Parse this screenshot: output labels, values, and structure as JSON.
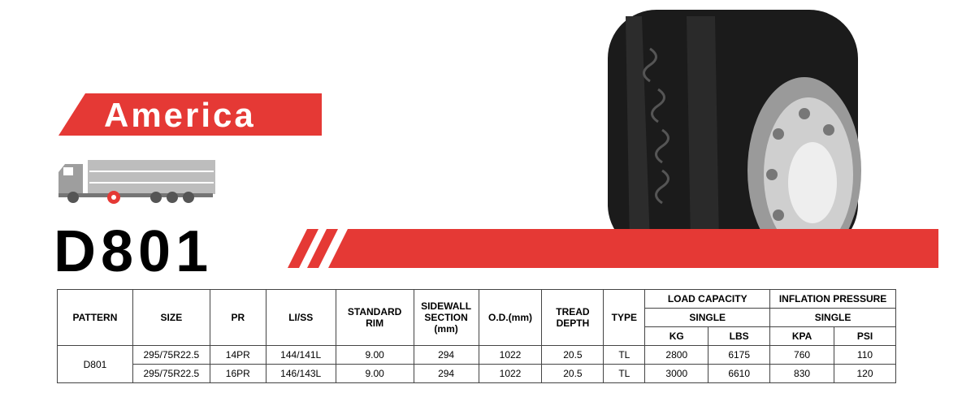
{
  "banner": {
    "region": "America",
    "model": "D801"
  },
  "table": {
    "columns": [
      "PATTERN",
      "SIZE",
      "PR",
      "LI/SS",
      "STANDARD RIM",
      "SIDEWALL SECTION (mm)",
      "O.D.(mm)",
      "TREAD DEPTH",
      "TYPE"
    ],
    "groups": [
      {
        "title": "LOAD CAPACITY",
        "sub": "SINGLE",
        "units": [
          "KG",
          "LBS"
        ]
      },
      {
        "title": "INFLATION PRESSURE",
        "sub": "SINGLE",
        "units": [
          "KPA",
          "PSI"
        ]
      }
    ],
    "pattern": "D801",
    "rows": [
      [
        "295/75R22.5",
        "14PR",
        "144/141L",
        "9.00",
        "294",
        "1022",
        "20.5",
        "TL",
        "2800",
        "6175",
        "760",
        "110"
      ],
      [
        "295/75R22.5",
        "16PR",
        "146/143L",
        "9.00",
        "294",
        "1022",
        "20.5",
        "TL",
        "3000",
        "6610",
        "830",
        "120"
      ]
    ]
  }
}
